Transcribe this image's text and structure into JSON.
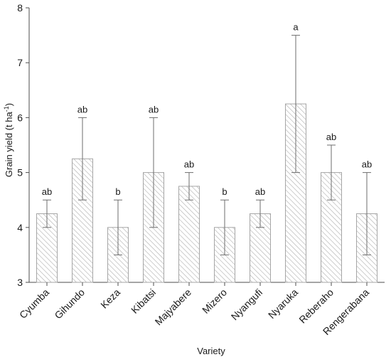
{
  "chart_data": {
    "type": "bar",
    "xlabel": "Variety",
    "ylabel_main": "Grain yield (t ha",
    "ylabel_sup": "-1",
    "ylabel_close": ")",
    "ylim": [
      3,
      8
    ],
    "yticks": [
      3,
      4,
      5,
      6,
      7,
      8
    ],
    "grid": false,
    "categories": [
      "Cyumba",
      "Gihundo",
      "Keza",
      "Kibatsi",
      "Majyabere",
      "Mizero",
      "Nyangufi",
      "Nyaruka",
      "Reberaho",
      "Rengerabana"
    ],
    "values": [
      4.25,
      5.25,
      4.0,
      5.0,
      4.75,
      4.0,
      4.25,
      6.25,
      5.0,
      4.25
    ],
    "error_low": [
      4.0,
      4.5,
      3.5,
      4.0,
      4.5,
      3.5,
      4.0,
      5.0,
      4.5,
      3.5
    ],
    "error_high": [
      4.5,
      6.0,
      4.5,
      6.0,
      5.0,
      4.5,
      4.5,
      7.5,
      5.5,
      5.0
    ],
    "significance": [
      "ab",
      "ab",
      "b",
      "ab",
      "ab",
      "b",
      "ab",
      "a",
      "ab",
      "ab"
    ],
    "colors": {
      "bar_stroke": "#a6a6a6",
      "hatch": "#b3b3b3",
      "axis": "#4d4d4d",
      "error_bar": "#6e6e6e"
    }
  }
}
